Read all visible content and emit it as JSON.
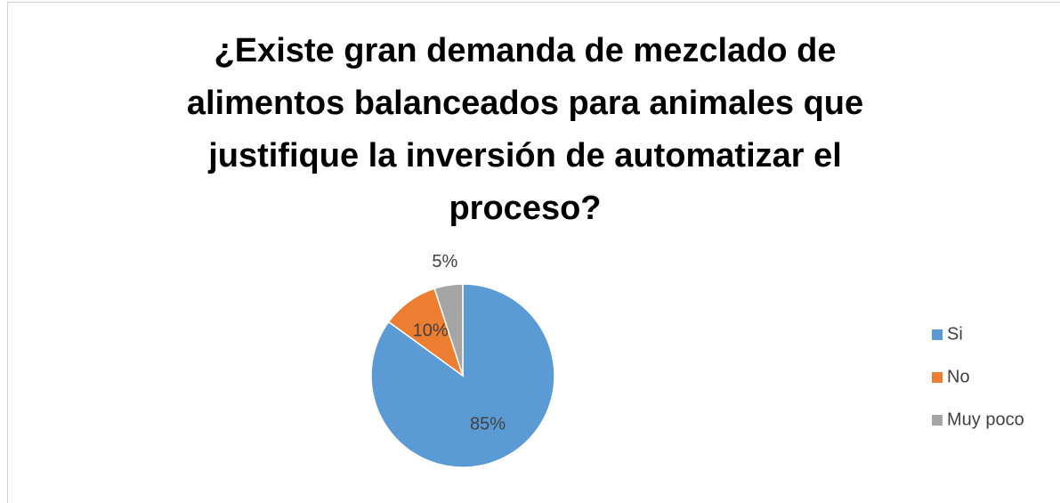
{
  "chart_data": {
    "type": "pie",
    "title": "¿Existe gran demanda de mezclado de alimentos balanceados para animales que justifique la inversión de automatizar el proceso?",
    "categories": [
      "Si",
      "No",
      "Muy poco"
    ],
    "values": [
      85,
      10,
      5
    ],
    "value_labels": [
      "85%",
      "10%",
      "5%"
    ],
    "colors": [
      "#5b9bd5",
      "#ed7d31",
      "#a5a5a5"
    ],
    "legend": "right"
  }
}
